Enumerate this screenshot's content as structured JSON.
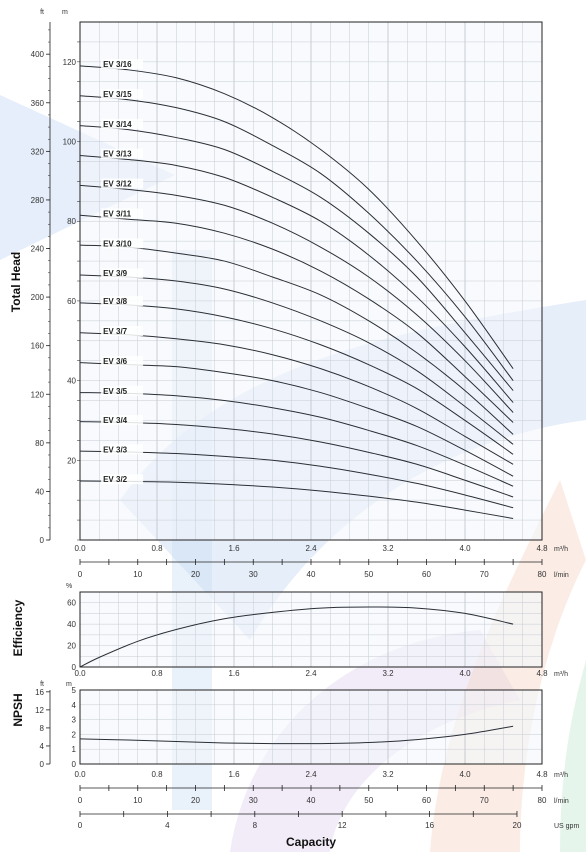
{
  "charts": {
    "head": {
      "ylabel": "Total Head",
      "unit_ft": "ft",
      "unit_m": "m",
      "ft_ticks": [
        "0",
        "40",
        "80",
        "120",
        "160",
        "200",
        "240",
        "280",
        "320",
        "360",
        "400"
      ],
      "m_ticks": [
        "20",
        "40",
        "60",
        "80",
        "100",
        "120"
      ],
      "x_m3h_ticks": [
        "0.0",
        "0.8",
        "1.6",
        "2.4",
        "3.2",
        "4.0",
        "4.8"
      ],
      "x_m3h_unit": "m³/h",
      "x_lmin_ticks": [
        "0",
        "10",
        "20",
        "30",
        "40",
        "50",
        "60",
        "70",
        "80"
      ],
      "x_lmin_unit": "l/min"
    },
    "efficiency": {
      "ylabel": "Efficiency",
      "unit": "%",
      "ticks": [
        "0",
        "20",
        "40",
        "60"
      ],
      "x_ticks": [
        "0.0",
        "0.8",
        "1.6",
        "2.4",
        "3.2",
        "4.0",
        "4.8"
      ],
      "x_unit": "m³/h"
    },
    "npsh": {
      "ylabel": "NPSH",
      "unit_ft": "ft",
      "unit_m": "m",
      "ft_ticks": [
        "0",
        "4",
        "8",
        "12",
        "16"
      ],
      "m_ticks": [
        "0",
        "1",
        "2",
        "3",
        "4",
        "5"
      ],
      "x_m3h_ticks": [
        "0.0",
        "0.8",
        "1.6",
        "2.4",
        "3.2",
        "4.0",
        "4.8"
      ],
      "x_m3h_unit": "m³/h",
      "x_lmin_ticks": [
        "0",
        "10",
        "20",
        "30",
        "40",
        "50",
        "60",
        "70",
        "80"
      ],
      "x_lmin_unit": "l/min",
      "x_gpm_ticks": [
        "0",
        "4",
        "8",
        "12",
        "16",
        "20"
      ],
      "x_gpm_unit": "US gpm",
      "xlabel": "Capacity"
    }
  },
  "chart_data": [
    {
      "type": "line",
      "ylabel": "Total Head",
      "xlabel": "",
      "x_unit": "m³/h",
      "y_unit": "m",
      "xlim": [
        0,
        4.8
      ],
      "ylim": [
        0,
        130
      ],
      "grid": true,
      "x": [
        0.0,
        0.5,
        1.0,
        1.5,
        2.0,
        2.5,
        3.0,
        3.5,
        4.0,
        4.5
      ],
      "series": [
        {
          "name": "EV 3/16",
          "values": [
            119,
            118,
            116,
            112,
            106,
            98,
            88,
            75,
            60,
            43
          ]
        },
        {
          "name": "EV 3/15",
          "values": [
            111.5,
            110.5,
            108.5,
            105,
            99,
            92,
            82,
            70,
            56,
            40
          ]
        },
        {
          "name": "EV 3/14",
          "values": [
            104,
            103,
            101,
            98,
            92.5,
            86,
            77,
            66,
            52,
            37.5
          ]
        },
        {
          "name": "EV 3/13",
          "values": [
            96.5,
            95.5,
            94,
            91,
            86,
            80,
            71.5,
            61,
            48.5,
            34.5
          ]
        },
        {
          "name": "EV 3/12",
          "values": [
            89,
            88,
            86.5,
            84,
            79.5,
            73.5,
            66,
            56.5,
            45,
            32
          ]
        },
        {
          "name": "EV 3/11",
          "values": [
            81.5,
            80.5,
            79.5,
            77,
            73,
            67.5,
            60.5,
            52,
            41,
            29.5
          ]
        },
        {
          "name": "EV 3/10",
          "values": [
            74,
            73.5,
            72,
            70,
            66,
            61.5,
            55,
            47,
            37.5,
            26.5
          ]
        },
        {
          "name": "EV 3/9",
          "values": [
            66.5,
            66,
            65,
            63,
            59.5,
            55,
            49.5,
            42.5,
            33.5,
            24
          ]
        },
        {
          "name": "EV 3/8",
          "values": [
            59.5,
            59,
            58,
            56,
            53,
            49,
            44,
            38,
            30,
            21.5
          ]
        },
        {
          "name": "EV 3/7",
          "values": [
            52,
            51.5,
            50.5,
            49,
            46.5,
            43,
            38.5,
            33,
            26,
            19
          ]
        },
        {
          "name": "EV 3/6",
          "values": [
            44.5,
            44,
            43.5,
            42,
            40,
            37,
            33,
            28.5,
            22.5,
            16
          ]
        },
        {
          "name": "EV 3/5",
          "values": [
            37,
            36.8,
            36.2,
            35,
            33.2,
            30.8,
            27.5,
            23.7,
            18.8,
            13.5
          ]
        },
        {
          "name": "EV 3/4",
          "values": [
            29.7,
            29.5,
            29,
            28,
            26.6,
            24.6,
            22,
            19,
            15,
            10.8
          ]
        },
        {
          "name": "EV 3/3",
          "values": [
            22.3,
            22.1,
            21.7,
            21,
            20,
            18.5,
            16.5,
            14.2,
            11.3,
            8.1
          ]
        },
        {
          "name": "EV 3/2",
          "values": [
            14.8,
            14.7,
            14.5,
            14,
            13.3,
            12.3,
            11,
            9.5,
            7.5,
            5.4
          ]
        }
      ]
    },
    {
      "type": "line",
      "ylabel": "Efficiency",
      "x_unit": "m³/h",
      "y_unit": "%",
      "xlim": [
        0,
        4.8
      ],
      "ylim": [
        0,
        70
      ],
      "grid": true,
      "x": [
        0.0,
        0.2,
        0.6,
        1.0,
        1.5,
        2.0,
        2.5,
        3.0,
        3.5,
        4.0,
        4.5
      ],
      "series": [
        {
          "name": "",
          "values": [
            0,
            9,
            24,
            35,
            45,
            51,
            55,
            56,
            55,
            50,
            40
          ]
        }
      ]
    },
    {
      "type": "line",
      "ylabel": "NPSH",
      "xlabel": "Capacity",
      "x_unit": "m³/h",
      "y_unit": "m",
      "xlim": [
        0,
        4.8
      ],
      "ylim": [
        0,
        5
      ],
      "grid": true,
      "x": [
        0.0,
        0.5,
        1.0,
        1.5,
        2.0,
        2.5,
        3.0,
        3.5,
        4.0,
        4.5
      ],
      "series": [
        {
          "name": "",
          "values": [
            1.7,
            1.62,
            1.52,
            1.42,
            1.38,
            1.38,
            1.45,
            1.65,
            2.0,
            2.55
          ]
        }
      ]
    }
  ]
}
